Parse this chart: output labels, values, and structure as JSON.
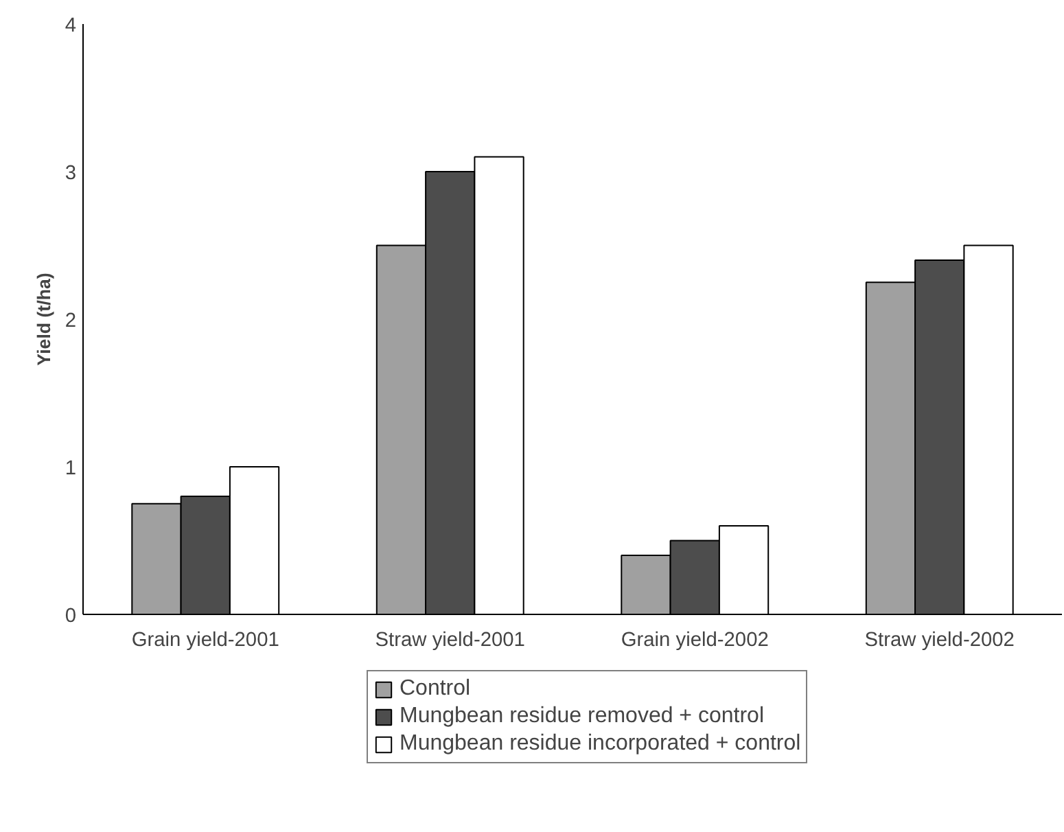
{
  "chart_data": {
    "type": "bar",
    "ylabel": "Yield (t/ha)",
    "categories": [
      "Grain yield-2001",
      "Straw yield-2001",
      "Grain yield-2002",
      "Straw yield-2002"
    ],
    "series": [
      {
        "name": "Control",
        "color": "#a0a0a0",
        "values": [
          0.75,
          2.5,
          0.4,
          2.25
        ]
      },
      {
        "name": "Mungbean residue removed + control",
        "color": "#4d4d4d",
        "values": [
          0.8,
          3.0,
          0.5,
          2.4
        ]
      },
      {
        "name": "Mungbean residue incorporated + control",
        "color": "#ffffff",
        "values": [
          1.0,
          3.1,
          0.6,
          2.5
        ]
      }
    ],
    "ylim": [
      0,
      4
    ],
    "yticks": [
      0,
      1,
      2,
      3,
      4
    ],
    "grid": false,
    "legend": "bottom"
  }
}
